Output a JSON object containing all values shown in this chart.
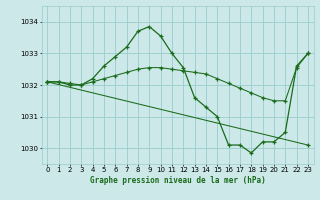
{
  "xlabel": "Graphe pression niveau de la mer (hPa)",
  "background_color": "#cce8e8",
  "grid_color": "#99cccc",
  "line_color": "#1a6b1a",
  "ylim": [
    1029.5,
    1034.5
  ],
  "xlim": [
    -0.5,
    23.5
  ],
  "yticks": [
    1030,
    1031,
    1032,
    1033,
    1034
  ],
  "xticks": [
    0,
    1,
    2,
    3,
    4,
    5,
    6,
    7,
    8,
    9,
    10,
    11,
    12,
    13,
    14,
    15,
    16,
    17,
    18,
    19,
    20,
    21,
    22,
    23
  ],
  "series": [
    {
      "x": [
        0,
        1,
        2,
        3,
        4,
        5,
        6,
        7,
        8,
        9,
        10,
        11,
        12,
        13,
        14,
        15,
        16,
        17,
        18,
        19,
        20,
        21,
        22,
        23
      ],
      "y": [
        1032.1,
        1032.1,
        1032.0,
        1032.0,
        1032.2,
        1032.6,
        1032.9,
        1033.2,
        1033.7,
        1033.85,
        1033.55,
        1033.0,
        1032.55,
        1031.6,
        1031.3,
        1031.0,
        1030.1,
        1030.1,
        1029.85,
        1030.2,
        1030.2,
        1030.5,
        1032.6,
        1033.0
      ]
    },
    {
      "x": [
        0,
        23
      ],
      "y": [
        1032.1,
        1030.1
      ]
    },
    {
      "x": [
        0,
        1,
        2,
        3,
        4,
        5,
        6,
        7,
        8,
        9,
        10,
        11,
        12,
        13,
        14,
        15,
        16,
        17,
        18,
        19,
        20,
        21,
        22,
        23
      ],
      "y": [
        1032.1,
        1032.1,
        1032.05,
        1032.0,
        1032.1,
        1032.2,
        1032.3,
        1032.4,
        1032.5,
        1032.55,
        1032.55,
        1032.5,
        1032.45,
        1032.4,
        1032.35,
        1032.2,
        1032.05,
        1031.9,
        1031.75,
        1031.6,
        1031.5,
        1031.5,
        1032.55,
        1033.0
      ]
    }
  ]
}
